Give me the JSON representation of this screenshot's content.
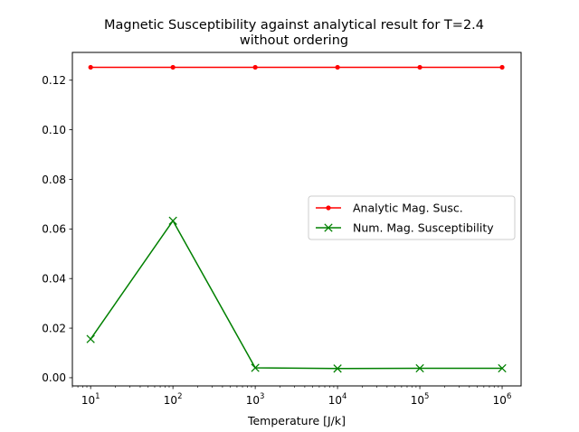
{
  "chart_data": {
    "type": "line",
    "title": "Magnetic Susceptibility against analytical result for T=2.4",
    "subtitle": "without ordering",
    "xlabel": "Temperature [J/k]",
    "ylabel": "",
    "xscale": "log",
    "xlim": [
      6.0,
      1700000
    ],
    "ylim": [
      -0.0033,
      0.1312
    ],
    "xticks": [
      {
        "value": 10,
        "base": "10",
        "exp": "1"
      },
      {
        "value": 100,
        "base": "10",
        "exp": "2"
      },
      {
        "value": 1000,
        "base": "10",
        "exp": "3"
      },
      {
        "value": 10000,
        "base": "10",
        "exp": "4"
      },
      {
        "value": 100000,
        "base": "10",
        "exp": "5"
      },
      {
        "value": 1000000,
        "base": "10",
        "exp": "6"
      }
    ],
    "yticks": [
      {
        "value": 0.0,
        "label": "0.00"
      },
      {
        "value": 0.02,
        "label": "0.02"
      },
      {
        "value": 0.04,
        "label": "0.04"
      },
      {
        "value": 0.06,
        "label": "0.06"
      },
      {
        "value": 0.08,
        "label": "0.08"
      },
      {
        "value": 0.1,
        "label": "0.10"
      },
      {
        "value": 0.12,
        "label": "0.12"
      }
    ],
    "x": [
      10,
      100,
      1000,
      10000,
      100000,
      1000000
    ],
    "series": [
      {
        "name": "Analytic Mag. Susc.",
        "color": "#ff0000",
        "marker": "dot",
        "values": [
          0.1252,
          0.1252,
          0.1252,
          0.1252,
          0.1252,
          0.1252
        ]
      },
      {
        "name": "Num. Mag. Susceptibility",
        "color": "#008000",
        "marker": "x",
        "values": [
          0.0156,
          0.0633,
          0.004,
          0.0037,
          0.0038,
          0.0038
        ]
      }
    ],
    "grid": false,
    "legend": "center-right"
  }
}
